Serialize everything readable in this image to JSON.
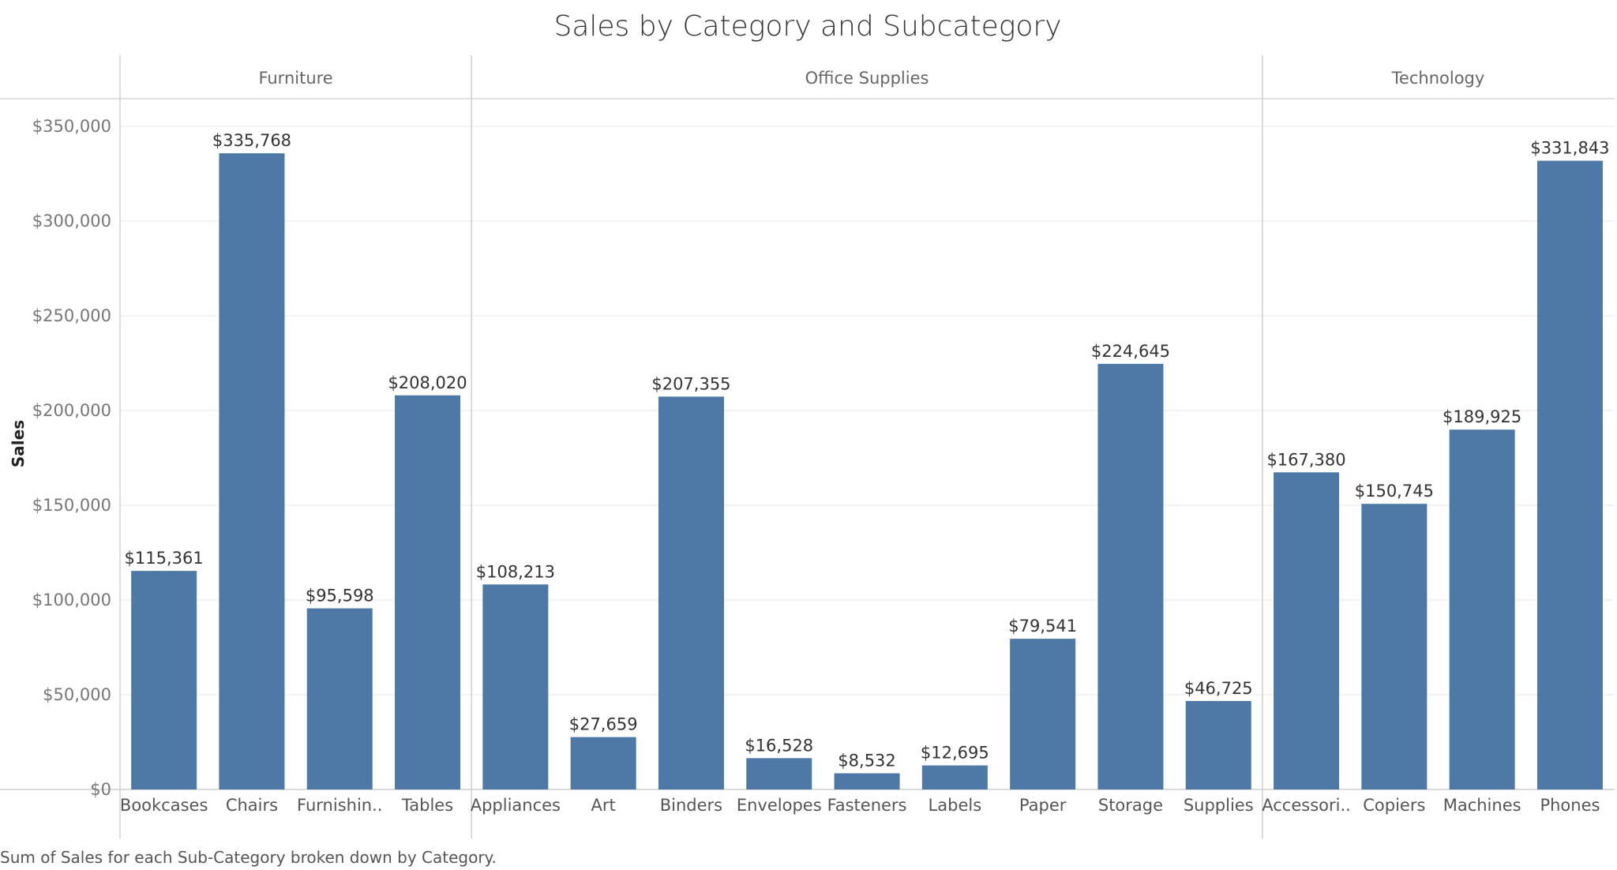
{
  "chart_data": {
    "type": "bar",
    "title": "Sales by Category and Subcategory",
    "ylabel": "Sales",
    "xlabel": "",
    "ylim": [
      0,
      350000
    ],
    "yticks": [
      0,
      50000,
      100000,
      150000,
      200000,
      250000,
      300000,
      350000
    ],
    "ytick_labels": [
      "$0",
      "$50,000",
      "$100,000",
      "$150,000",
      "$200,000",
      "$250,000",
      "$300,000",
      "$350,000"
    ],
    "groups": [
      {
        "name": "Furniture",
        "categories": [
          "Bookcases",
          "Chairs",
          "Furnishin..",
          "Tables"
        ],
        "values": [
          115361,
          335768,
          95598,
          208020
        ],
        "labels": [
          "$115,361",
          "$335,768",
          "$95,598",
          "$208,020"
        ]
      },
      {
        "name": "Office Supplies",
        "categories": [
          "Appliances",
          "Art",
          "Binders",
          "Envelopes",
          "Fasteners",
          "Labels",
          "Paper",
          "Storage",
          "Supplies"
        ],
        "values": [
          108213,
          27659,
          207355,
          16528,
          8532,
          12695,
          79541,
          224645,
          46725
        ],
        "labels": [
          "$108,213",
          "$27,659",
          "$207,355",
          "$16,528",
          "$8,532",
          "$12,695",
          "$79,541",
          "$224,645",
          "$46,725"
        ]
      },
      {
        "name": "Technology",
        "categories": [
          "Accessori..",
          "Copiers",
          "Machines",
          "Phones"
        ],
        "values": [
          167380,
          150745,
          189925,
          331843
        ],
        "labels": [
          "$167,380",
          "$150,745",
          "$189,925",
          "$331,843"
        ]
      }
    ],
    "bar_color": "#4e79a7",
    "grid": true,
    "caption": "Sum of Sales for each Sub-Category broken down by Category."
  }
}
